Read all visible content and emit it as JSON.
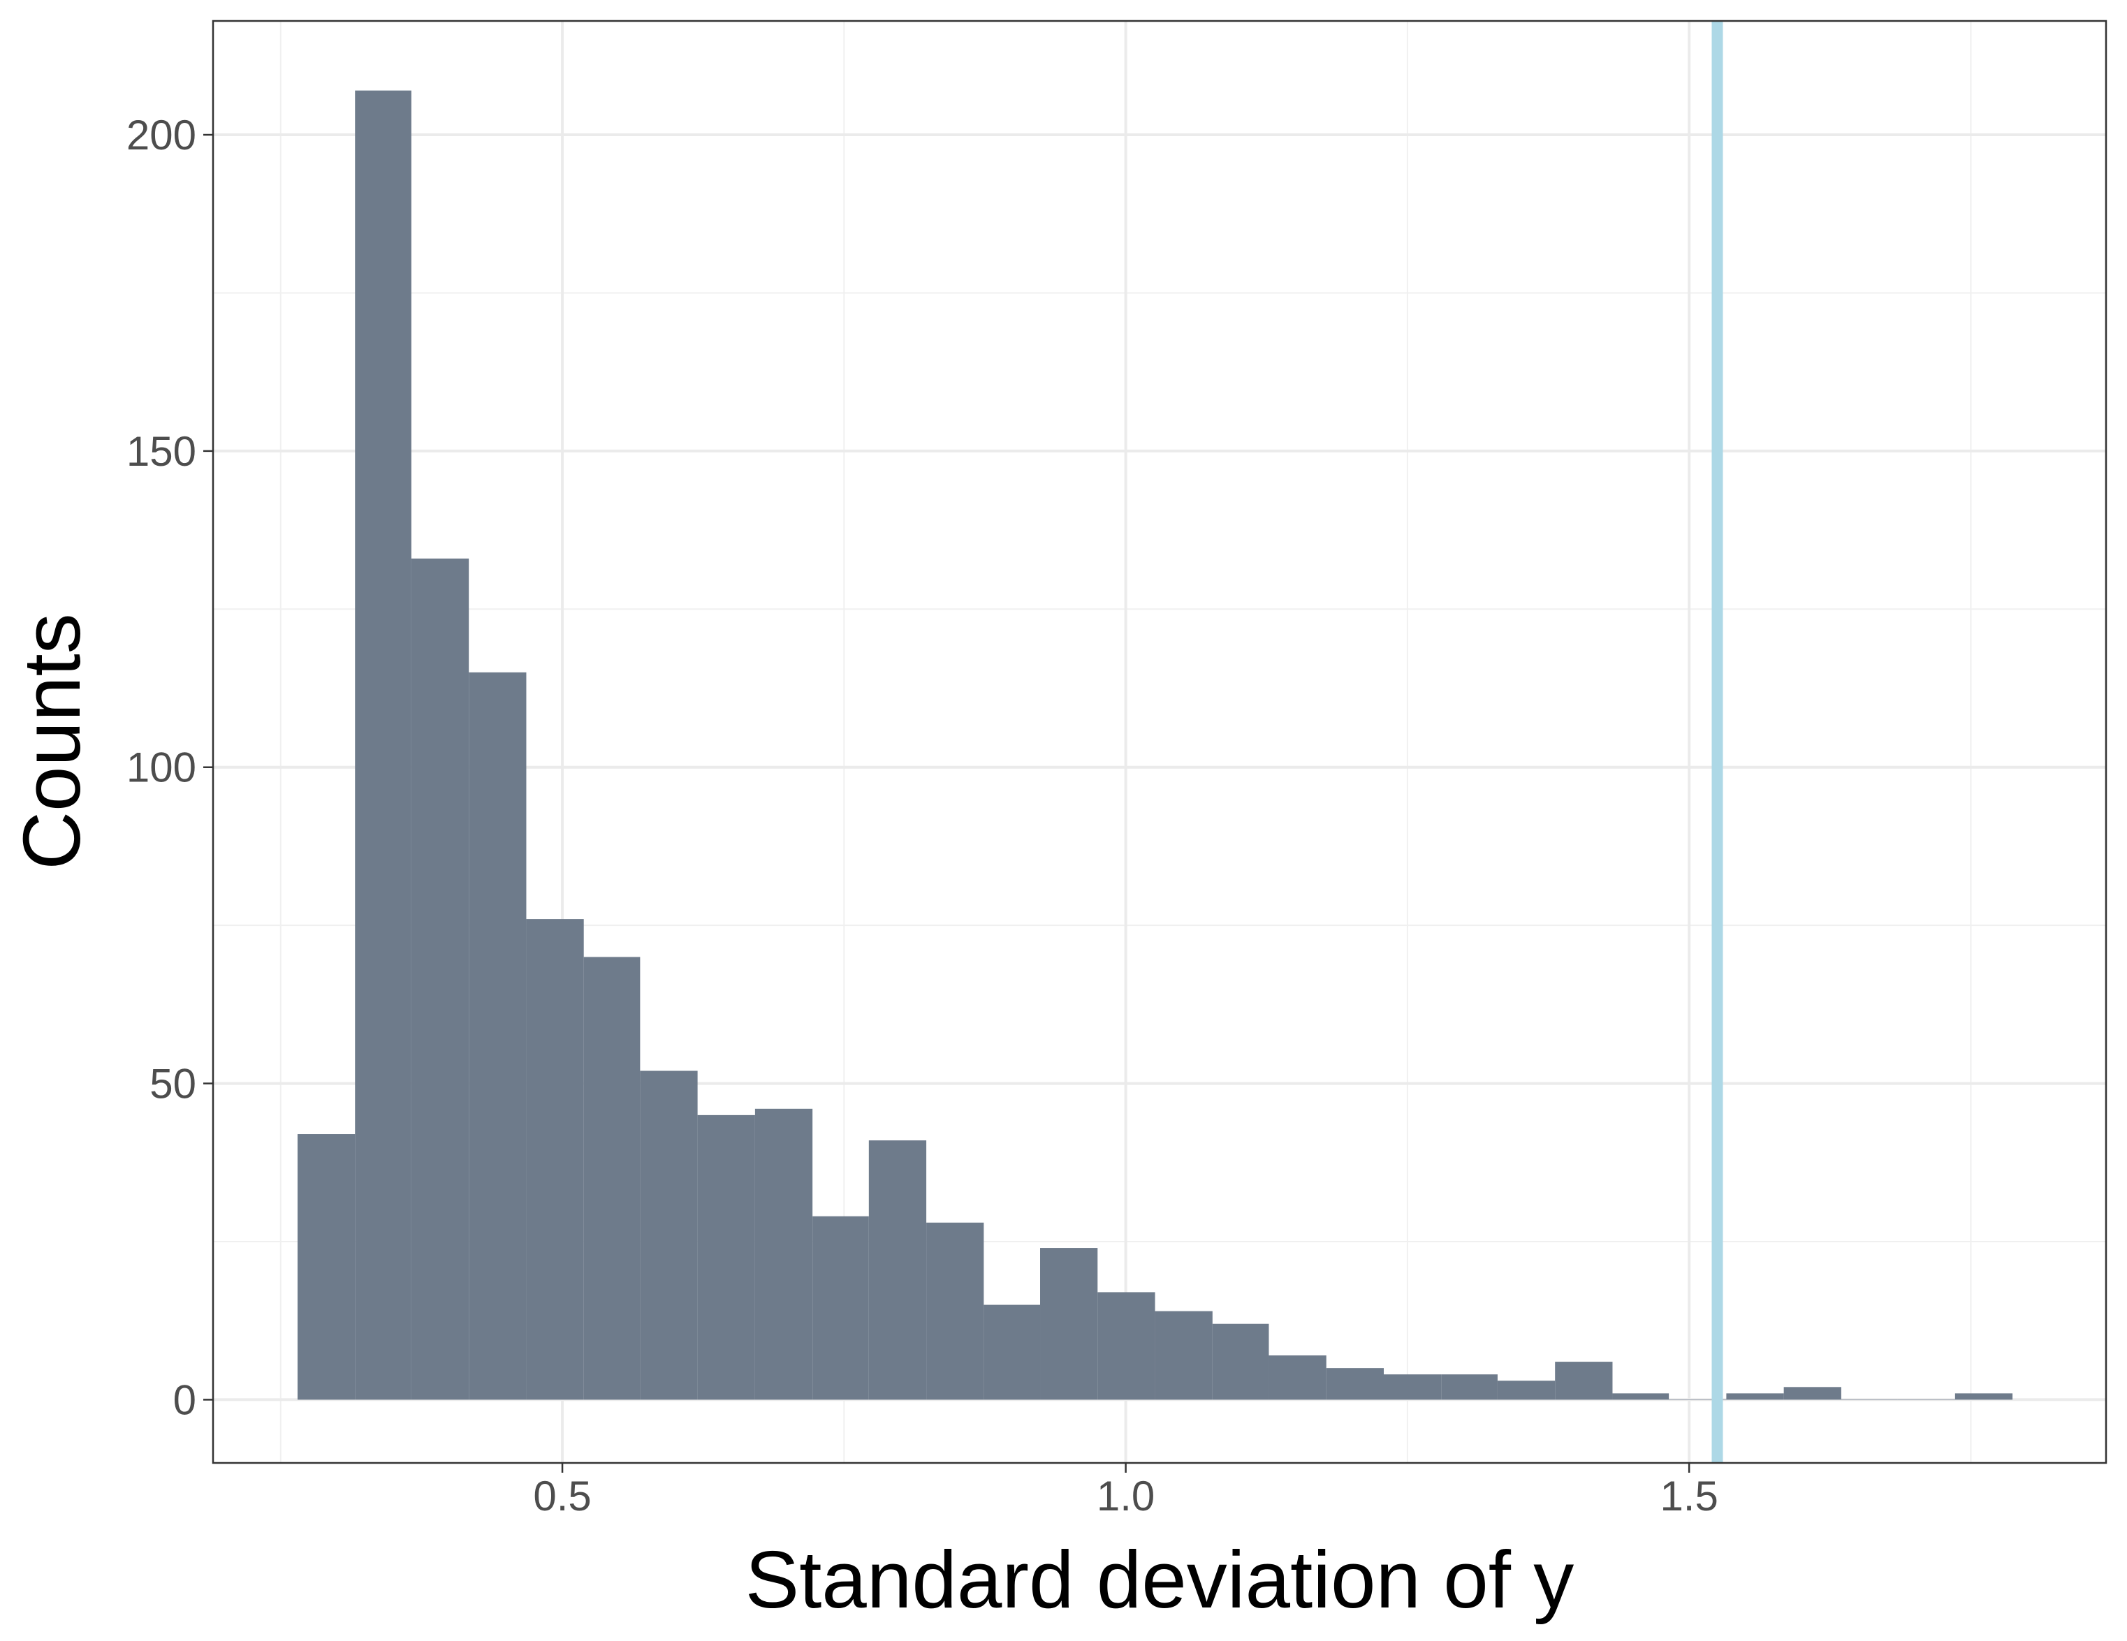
{
  "chart_data": {
    "type": "bar",
    "subtype": "histogram",
    "title": "",
    "xlabel": "Standard deviation of y",
    "ylabel": "Counts",
    "xlim": [
      0.19,
      1.87
    ],
    "ylim": [
      -10,
      218
    ],
    "x_ticks": [
      {
        "value": 0.5,
        "label": "0.5"
      },
      {
        "value": 1.0,
        "label": "1.0"
      },
      {
        "value": 1.5,
        "label": "1.5"
      }
    ],
    "y_ticks": [
      {
        "value": 0,
        "label": "0"
      },
      {
        "value": 50,
        "label": "50"
      },
      {
        "value": 100,
        "label": "100"
      },
      {
        "value": 150,
        "label": "150"
      },
      {
        "value": 200,
        "label": "200"
      }
    ],
    "bin_width": 0.0507,
    "bins": [
      {
        "x0": 0.265,
        "x1": 0.316,
        "count": 42
      },
      {
        "x0": 0.316,
        "x1": 0.366,
        "count": 207
      },
      {
        "x0": 0.366,
        "x1": 0.417,
        "count": 133
      },
      {
        "x0": 0.417,
        "x1": 0.468,
        "count": 115
      },
      {
        "x0": 0.468,
        "x1": 0.519,
        "count": 76
      },
      {
        "x0": 0.519,
        "x1": 0.569,
        "count": 70
      },
      {
        "x0": 0.569,
        "x1": 0.62,
        "count": 52
      },
      {
        "x0": 0.62,
        "x1": 0.671,
        "count": 45
      },
      {
        "x0": 0.671,
        "x1": 0.722,
        "count": 46
      },
      {
        "x0": 0.722,
        "x1": 0.772,
        "count": 29
      },
      {
        "x0": 0.772,
        "x1": 0.823,
        "count": 41
      },
      {
        "x0": 0.823,
        "x1": 0.874,
        "count": 28
      },
      {
        "x0": 0.874,
        "x1": 0.924,
        "count": 15
      },
      {
        "x0": 0.924,
        "x1": 0.975,
        "count": 24
      },
      {
        "x0": 0.975,
        "x1": 1.026,
        "count": 17
      },
      {
        "x0": 1.026,
        "x1": 1.077,
        "count": 14
      },
      {
        "x0": 1.077,
        "x1": 1.127,
        "count": 12
      },
      {
        "x0": 1.127,
        "x1": 1.178,
        "count": 7
      },
      {
        "x0": 1.178,
        "x1": 1.229,
        "count": 5
      },
      {
        "x0": 1.229,
        "x1": 1.28,
        "count": 4
      },
      {
        "x0": 1.28,
        "x1": 1.33,
        "count": 4
      },
      {
        "x0": 1.33,
        "x1": 1.381,
        "count": 3
      },
      {
        "x0": 1.381,
        "x1": 1.432,
        "count": 6
      },
      {
        "x0": 1.432,
        "x1": 1.482,
        "count": 1
      },
      {
        "x0": 1.482,
        "x1": 1.533,
        "count": 0
      },
      {
        "x0": 1.533,
        "x1": 1.584,
        "count": 1
      },
      {
        "x0": 1.584,
        "x1": 1.635,
        "count": 2
      },
      {
        "x0": 1.635,
        "x1": 1.685,
        "count": 0
      },
      {
        "x0": 1.685,
        "x1": 1.736,
        "count": 0
      },
      {
        "x0": 1.736,
        "x1": 1.787,
        "count": 1
      }
    ],
    "reference_line": {
      "orientation": "vertical",
      "x": 1.525,
      "color": "#add8e6"
    },
    "bar_color": "#6e7b8b",
    "grid": true,
    "legend": "none"
  }
}
